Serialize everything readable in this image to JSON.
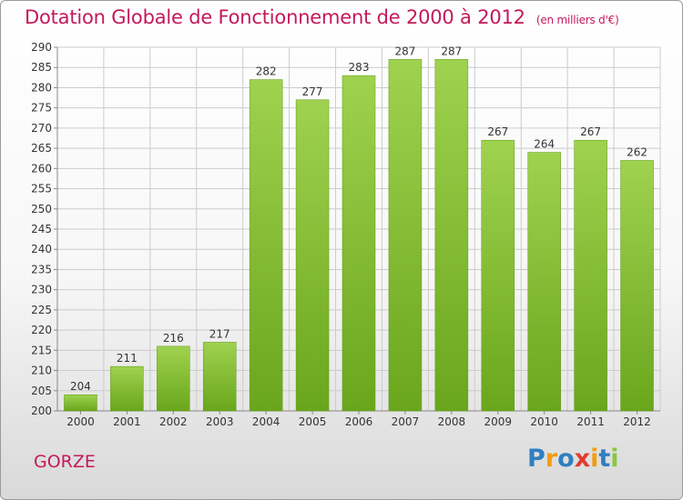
{
  "chart_data": {
    "type": "bar",
    "title": "Dotation Globale de Fonctionnement de 2000 à 2012",
    "subtitle": "(en milliers d'€)",
    "categories": [
      "2000",
      "2001",
      "2002",
      "2003",
      "2004",
      "2005",
      "2006",
      "2007",
      "2008",
      "2009",
      "2010",
      "2011",
      "2012"
    ],
    "values": [
      204,
      211,
      216,
      217,
      282,
      277,
      283,
      287,
      287,
      267,
      264,
      267,
      262
    ],
    "ylim": [
      200,
      290
    ],
    "yticks": [
      200,
      205,
      210,
      215,
      220,
      225,
      230,
      235,
      240,
      245,
      250,
      255,
      260,
      265,
      270,
      275,
      280,
      285,
      290
    ],
    "grid": true,
    "bar_color_top": "#9fd24f",
    "bar_color_bottom": "#6aa61c"
  },
  "footer": {
    "town": "GORZE",
    "logo_letters": [
      "P",
      "r",
      "o",
      "x",
      "i",
      "t",
      "i"
    ],
    "logo_colors": [
      "#2f7fc1",
      "#f39c12",
      "#2f7fc1",
      "#e23b2e",
      "#f39c12",
      "#2f7fc1",
      "#8cc63f"
    ]
  },
  "colors": {
    "title": "#c4195a",
    "grid": "#cccccc"
  }
}
